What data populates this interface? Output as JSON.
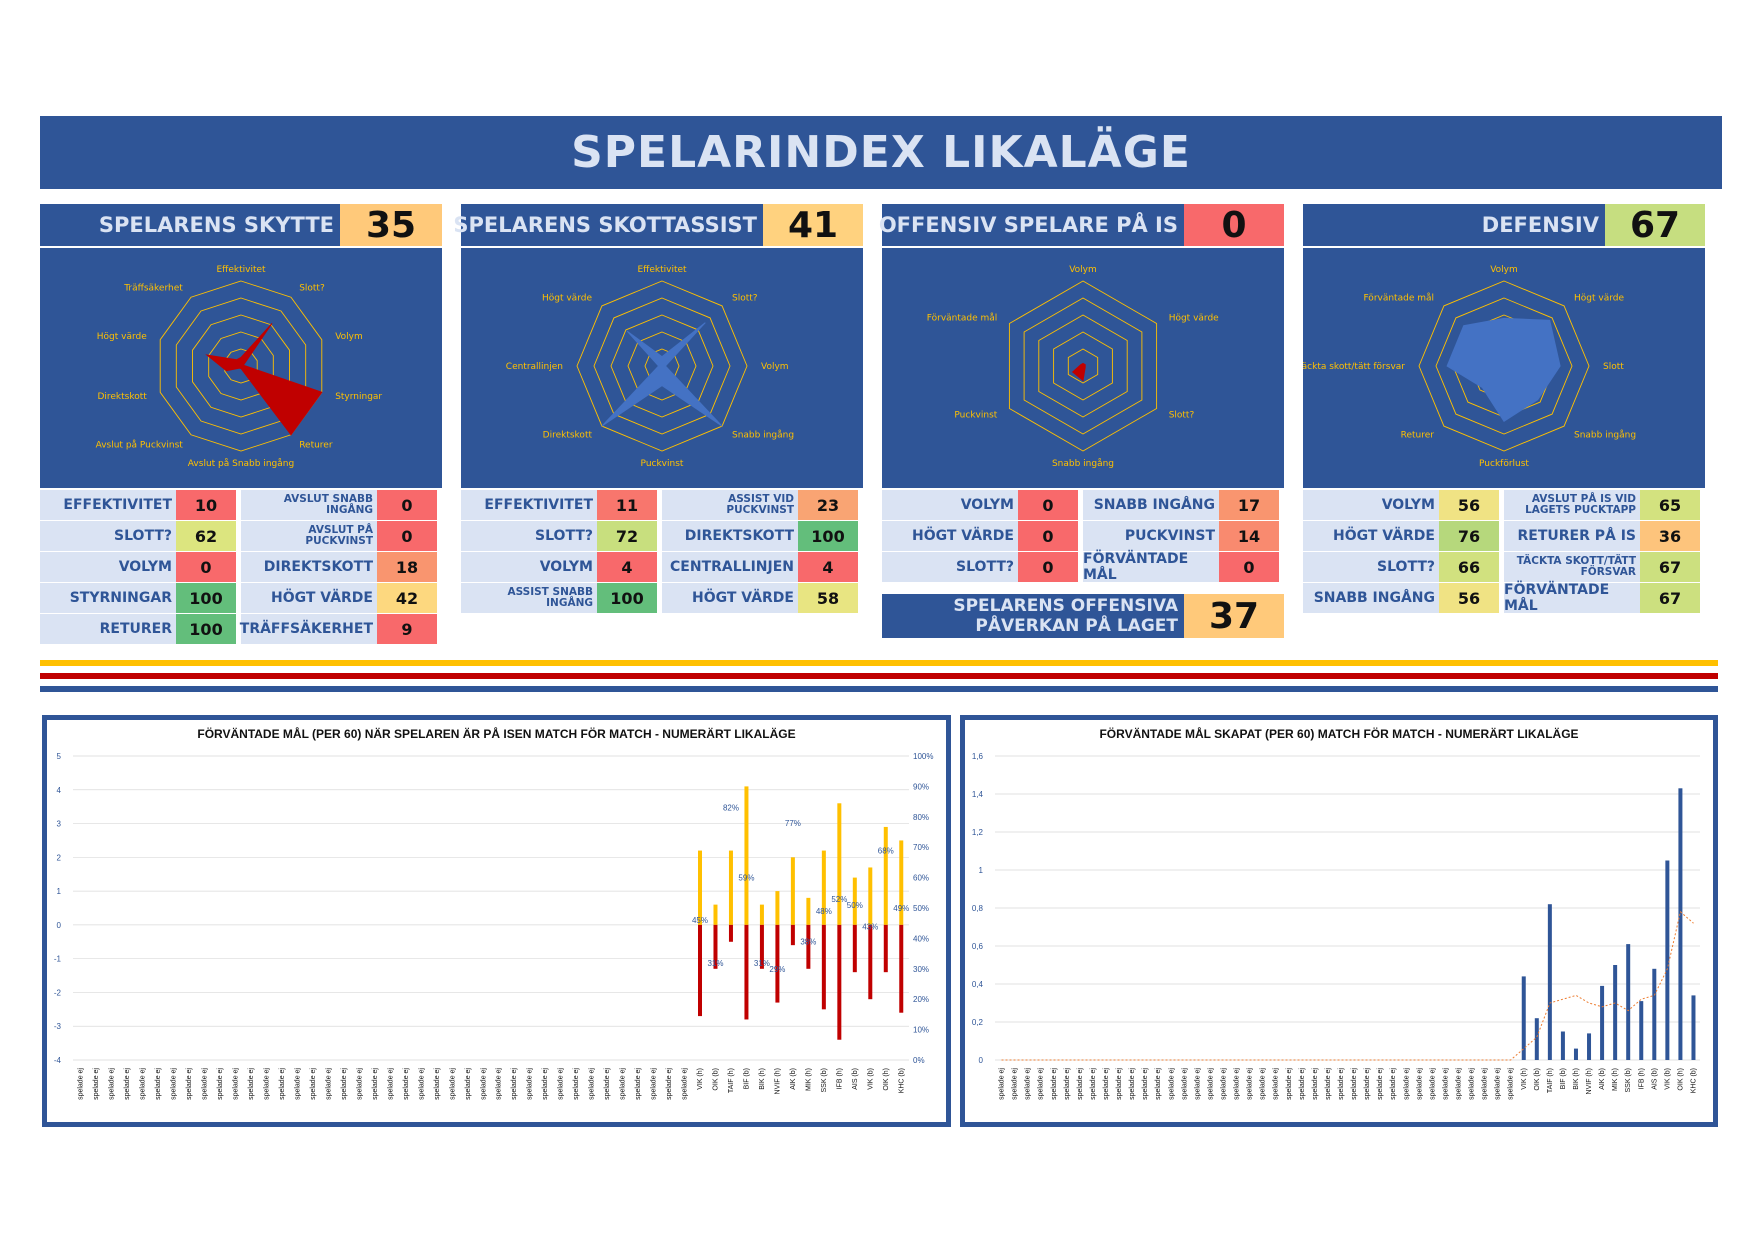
{
  "title": "SPELARINDEX LIKALÄGE",
  "panels": [
    {
      "title": "SPELARENS SKYTTE",
      "score": "35",
      "score_color": "#ffc97a",
      "radar_axes": [
        "Effektivitet",
        "Slott?",
        "Volym",
        "Styrningar",
        "Returer",
        "Avslut på Snabb ingång",
        "Avslut på Puckvinst",
        "Direktskott",
        "Högt värde",
        "Träffsäkerhet"
      ],
      "radar_values": [
        10,
        62,
        0,
        100,
        100,
        0,
        0,
        18,
        42,
        9
      ],
      "radar_color": "#c00000",
      "metrics": [
        {
          "label": "EFFEKTIVITET",
          "value": "10",
          "color": "#f8696b"
        },
        {
          "label": "AVSLUT SNABB INGÅNG",
          "value": "0",
          "color": "#f8696b"
        },
        {
          "label": "SLOTT?",
          "value": "62",
          "color": "#dce57f"
        },
        {
          "label": "AVSLUT PÅ PUCKVINST",
          "value": "0",
          "color": "#f8696b"
        },
        {
          "label": "VOLYM",
          "value": "0",
          "color": "#f8696b"
        },
        {
          "label": "DIREKTSKOTT",
          "value": "18",
          "color": "#f9956f"
        },
        {
          "label": "STYRNINGAR",
          "value": "100",
          "color": "#63be7b"
        },
        {
          "label": "HÖGT VÄRDE",
          "value": "42",
          "color": "#fdd87f"
        },
        {
          "label": "RETURER",
          "value": "100",
          "color": "#63be7b"
        },
        {
          "label": "TRÄFFSÄKERHET",
          "value": "9",
          "color": "#f8696b"
        }
      ]
    },
    {
      "title": "SPELARENS SKOTTASSIST",
      "score": "41",
      "score_color": "#ffd27f",
      "radar_axes": [
        "Effektivitet",
        "Slott?",
        "Volym",
        "Snabb ingång",
        "Puckvinst",
        "Direktskott",
        "Centrallinjen",
        "Högt värde"
      ],
      "radar_values": [
        11,
        72,
        4,
        100,
        23,
        100,
        4,
        58
      ],
      "radar_color": "#4472c4",
      "metrics": [
        {
          "label": "EFFEKTIVITET",
          "value": "11",
          "color": "#f8766d"
        },
        {
          "label": "ASSIST VID PUCKVINST",
          "value": "23",
          "color": "#f9a473"
        },
        {
          "label": "SLOTT?",
          "value": "72",
          "color": "#c8df7e"
        },
        {
          "label": "DIREKTSKOTT",
          "value": "100",
          "color": "#63be7b"
        },
        {
          "label": "VOLYM",
          "value": "4",
          "color": "#f8696b"
        },
        {
          "label": "CENTRALLINJEN",
          "value": "4",
          "color": "#f8696b"
        },
        {
          "label": "ASSIST SNABB INGÅNG",
          "value": "100",
          "color": "#63be7b"
        },
        {
          "label": "HÖGT VÄRDE",
          "value": "58",
          "color": "#e8e582"
        }
      ]
    },
    {
      "title": "OFFENSIV SPELARE PÅ IS",
      "score": "0",
      "score_color": "#f8696b",
      "radar_axes": [
        "Volym",
        "Högt värde",
        "Slott?",
        "Snabb ingång",
        "Puckvinst",
        "Förväntade mål"
      ],
      "radar_values": [
        0,
        0,
        0,
        17,
        14,
        0
      ],
      "radar_color": "#c00000",
      "metrics": [
        {
          "label": "VOLYM",
          "value": "0",
          "color": "#f8696b"
        },
        {
          "label": "SNABB INGÅNG",
          "value": "17",
          "color": "#f9956f"
        },
        {
          "label": "HÖGT VÄRDE",
          "value": "0",
          "color": "#f8696b"
        },
        {
          "label": "PUCKVINST",
          "value": "14",
          "color": "#f98a6f"
        },
        {
          "label": "SLOTT?",
          "value": "0",
          "color": "#f8696b"
        },
        {
          "label": "FÖRVÄNTADE MÅL",
          "value": "0",
          "color": "#f8696b"
        }
      ],
      "impact_label": "SPELARENS OFFENSIVA PÅVERKAN PÅ LAGET",
      "impact_value": "37",
      "impact_color": "#ffc97a"
    },
    {
      "title": "DEFENSIV",
      "score": "67",
      "score_color": "#c6de80",
      "radar_axes": [
        "Volym",
        "Högt värde",
        "Slott",
        "Snabb ingång",
        "Puckförlust",
        "Returer",
        "Täckta skott/tätt försvar",
        "Förväntade mål"
      ],
      "radar_values": [
        56,
        76,
        66,
        56,
        65,
        36,
        67,
        67
      ],
      "radar_color": "#4472c4",
      "metrics": [
        {
          "label": "VOLYM",
          "value": "56",
          "color": "#f0e384"
        },
        {
          "label": "AVSLUT PÅ IS VID LAGETS PUCKTAPP",
          "value": "65",
          "color": "#d3e27f"
        },
        {
          "label": "HÖGT VÄRDE",
          "value": "76",
          "color": "#b6d87c"
        },
        {
          "label": "RETURER PÅ IS",
          "value": "36",
          "color": "#fdc47c"
        },
        {
          "label": "SLOTT?",
          "value": "66",
          "color": "#d1e17f"
        },
        {
          "label": "TÄCKTA SKOTT/TÄTT FÖRSVAR",
          "value": "67",
          "color": "#cce07f"
        },
        {
          "label": "SNABB INGÅNG",
          "value": "56",
          "color": "#f0e384"
        },
        {
          "label": "FÖRVÄNTADE MÅL",
          "value": "67",
          "color": "#cce07f"
        }
      ]
    }
  ],
  "stripes": [
    {
      "color": "#ffc000"
    },
    {
      "color": "#c00000"
    },
    {
      "color": "#2f5597"
    }
  ],
  "chart_data": [
    {
      "type": "bar",
      "title": "FÖRVÄNTADE MÅL (PER 60) NÄR SPELAREN ÄR PÅ ISEN MATCH FÖR MATCH - NUMERÄRT LIKALÄGE",
      "ylim": [
        -4,
        5
      ],
      "y2lim": [
        0,
        100
      ],
      "yticks": [
        "5",
        "4",
        "3",
        "2",
        "1",
        "0",
        "-1",
        "-2",
        "-3",
        "-4"
      ],
      "y2ticks": [
        "100%",
        "90%",
        "80%",
        "70%",
        "60%",
        "50%",
        "40%",
        "30%",
        "20%",
        "10%",
        "0%"
      ],
      "placeholder_label": "spelade ej",
      "placeholder_count": 40,
      "categories": [
        "VIK (h)",
        "OIK (b)",
        "TAIF (h)",
        "BIF (b)",
        "BIK (h)",
        "NVIF (h)",
        "AIK (b)",
        "MIK (h)",
        "SSK (b)",
        "IFB (h)",
        "AIS (b)",
        "VIK (b)",
        "OIK (h)",
        "KHC (b)"
      ],
      "series": [
        {
          "name": "xGF",
          "color": "#ffc000",
          "values": [
            2.2,
            0.6,
            2.2,
            4.1,
            0.6,
            1.0,
            2.0,
            0.8,
            2.2,
            3.6,
            1.4,
            1.7,
            2.9,
            2.5
          ]
        },
        {
          "name": "xGA",
          "color": "#c00000",
          "values": [
            -2.7,
            -1.3,
            -0.5,
            -2.8,
            -1.3,
            -2.3,
            -0.6,
            -1.3,
            -2.5,
            -3.4,
            -1.4,
            -2.2,
            -1.4,
            -2.6
          ]
        }
      ],
      "percent_labels": [
        "45%",
        "31%",
        "82%",
        "59%",
        "31%",
        "29%",
        "77%",
        "38%",
        "48%",
        "52%",
        "50%",
        "43%",
        "68%",
        "49%"
      ]
    },
    {
      "type": "bar",
      "title": "FÖRVÄNTADE MÅL SKAPAT (PER 60) MATCH FÖR MATCH - NUMERÄRT LIKALÄGE",
      "ylim": [
        0,
        1.6
      ],
      "yticks": [
        "1,6",
        "1,4",
        "1,2",
        "1",
        "0,8",
        "0,6",
        "0,4",
        "0,2",
        "0"
      ],
      "placeholder_label": "spelade ej",
      "placeholder_count": 40,
      "categories": [
        "VIK (h)",
        "OIK (b)",
        "TAIF (h)",
        "BIF (b)",
        "BIK (h)",
        "NVIF (h)",
        "AIK (b)",
        "MIK (h)",
        "SSK (b)",
        "IFB (h)",
        "AIS (b)",
        "VIK (b)",
        "OIK (h)",
        "KHC (b)"
      ],
      "series": [
        {
          "name": "xG",
          "color": "#2f5597",
          "values": [
            0.44,
            0.22,
            0.82,
            0.15,
            0.06,
            0.14,
            0.39,
            0.5,
            0.61,
            0.31,
            0.48,
            1.05,
            1.43,
            0.34
          ]
        },
        {
          "name": "trend",
          "color": "#ed7d31",
          "values": [
            0.06,
            0.12,
            0.3,
            0.32,
            0.34,
            0.3,
            0.28,
            0.3,
            0.26,
            0.32,
            0.34,
            0.48,
            0.78,
            0.72
          ]
        }
      ]
    }
  ]
}
